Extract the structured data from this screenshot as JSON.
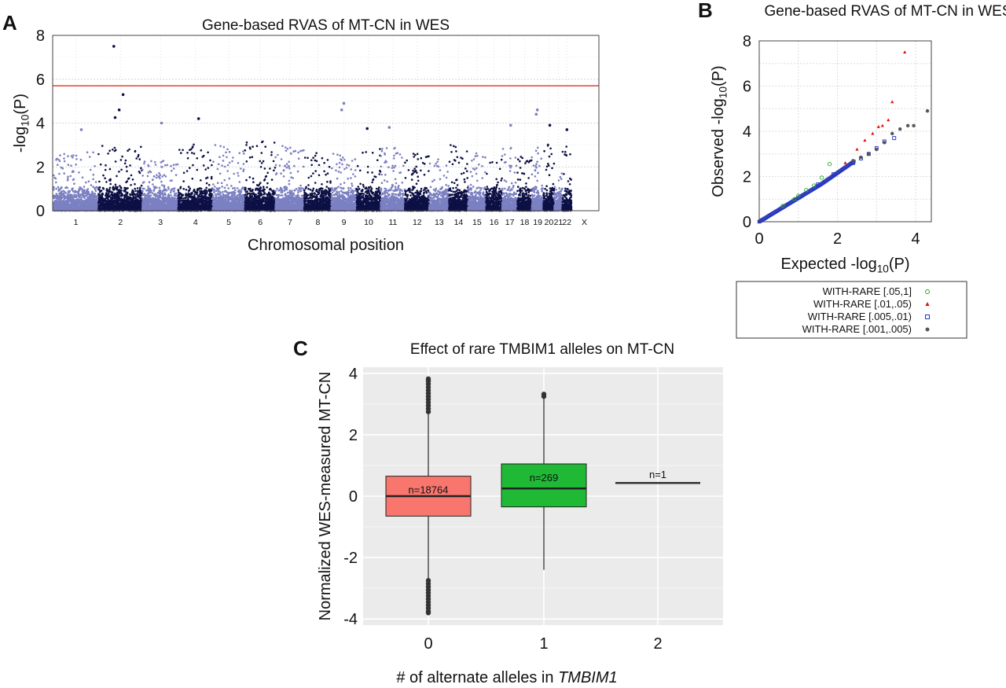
{
  "panels": {
    "a": {
      "letter": "A"
    },
    "b": {
      "letter": "B"
    },
    "c": {
      "letter": "C"
    }
  },
  "chart_data": [
    {
      "id": "A",
      "type": "scatter",
      "title": "Gene-based RVAS of MT-CN in WES",
      "xlabel": "Chromosomal position",
      "ylabel": "-log10(P)",
      "ylim": [
        0,
        8
      ],
      "yticks": [
        0,
        2,
        4,
        6,
        8
      ],
      "grid": true,
      "threshold": 5.7,
      "threshold_color": "#e34234",
      "colors": {
        "light": "#7b80c2",
        "dark": "#0d1045"
      },
      "chromosomes": [
        "1",
        "2",
        "3",
        "4",
        "5",
        "6",
        "7",
        "8",
        "9",
        "10",
        "11",
        "12",
        "13",
        "14",
        "15",
        "16",
        "17",
        "18",
        "19",
        "20",
        "21",
        "22",
        "X"
      ],
      "top_hits": [
        {
          "chromosome": "2",
          "p": 7.5
        },
        {
          "chromosome": "2",
          "p": 5.3
        },
        {
          "chromosome": "2",
          "p": 4.6
        },
        {
          "chromosome": "2",
          "p": 4.25
        },
        {
          "chromosome": "4",
          "p": 4.2
        },
        {
          "chromosome": "9",
          "p": 4.9
        },
        {
          "chromosome": "9",
          "p": 4.6
        },
        {
          "chromosome": "1",
          "p": 3.7
        },
        {
          "chromosome": "3",
          "p": 4.0
        },
        {
          "chromosome": "10",
          "p": 3.75
        },
        {
          "chromosome": "11",
          "p": 3.8
        },
        {
          "chromosome": "17",
          "p": 3.9
        },
        {
          "chromosome": "19",
          "p": 4.6
        },
        {
          "chromosome": "19",
          "p": 4.4
        },
        {
          "chromosome": "20",
          "p": 3.9
        },
        {
          "chromosome": "22",
          "p": 3.7
        }
      ]
    },
    {
      "id": "B",
      "type": "scatter",
      "title": "Gene-based RVAS of MT-CN in WES",
      "xlabel": "Expected -log10(P)",
      "ylabel": "Observed -log10(P)",
      "xlim": [
        0,
        4.4
      ],
      "ylim": [
        0,
        8
      ],
      "xticks": [
        0,
        2,
        4
      ],
      "yticks": [
        0,
        2,
        4,
        6,
        8
      ],
      "grid": true,
      "legend_position": "bottom",
      "series": [
        {
          "name": "WITH-RARE [.05,1]",
          "marker": "○",
          "color": "#22aa22",
          "x": [
            0.6,
            0.9,
            1.0,
            1.2,
            1.4,
            1.6,
            1.8
          ],
          "y": [
            0.7,
            1.0,
            1.15,
            1.4,
            1.6,
            1.95,
            2.55
          ]
        },
        {
          "name": "WITH-RARE [.01,.05)",
          "marker": "▲",
          "color": "#dd1111",
          "x": [
            2.2,
            2.5,
            2.7,
            2.9,
            3.05,
            3.15,
            3.3,
            3.4,
            3.72
          ],
          "y": [
            2.6,
            3.2,
            3.6,
            3.9,
            4.2,
            4.25,
            4.5,
            5.3,
            7.5
          ]
        },
        {
          "name": "WITH-RARE [.005,.01)",
          "marker": "□",
          "color": "#2233cc",
          "x": [
            1.5,
            1.9,
            2.4,
            2.6,
            2.8,
            3.0,
            3.2,
            3.45
          ],
          "y": [
            1.65,
            2.1,
            2.6,
            2.8,
            3.0,
            3.25,
            3.55,
            3.7
          ]
        },
        {
          "name": "WITH-RARE [.001,.005)",
          "marker": "●",
          "color": "#555555",
          "x": [
            2.4,
            2.6,
            2.8,
            3.0,
            3.2,
            3.4,
            3.6,
            3.8,
            3.95,
            4.3
          ],
          "y": [
            2.7,
            2.85,
            3.0,
            3.2,
            3.5,
            3.9,
            4.1,
            4.25,
            4.25,
            4.9
          ]
        }
      ]
    },
    {
      "id": "C",
      "type": "box",
      "title": "Effect of rare TMBIM1 alleles on MT-CN",
      "xlabel": "# of alternate alleles in TMBIM1",
      "ylabel": "Normalized WES-measured MT-CN",
      "ylim": [
        -4.2,
        4.2
      ],
      "yticks": [
        -4,
        -2,
        0,
        2,
        4
      ],
      "grid": true,
      "categories": [
        "0",
        "1",
        "2"
      ],
      "boxes": [
        {
          "category": "0",
          "label": "n=18764",
          "color": "#f8766d",
          "q1": -0.65,
          "median": 0.0,
          "q3": 0.65,
          "whisker_low": -2.7,
          "whisker_high": 2.7,
          "outliers_low": [
            -2.75,
            -2.85,
            -2.95,
            -3.05,
            -3.15,
            -3.25,
            -3.35,
            -3.45,
            -3.55,
            -3.65,
            -3.75,
            -3.8
          ],
          "outliers_high": [
            2.75,
            2.85,
            2.95,
            3.05,
            3.15,
            3.25,
            3.35,
            3.45,
            3.55,
            3.65,
            3.75,
            3.82
          ]
        },
        {
          "category": "1",
          "label": "n=269",
          "color": "#20b936",
          "q1": -0.35,
          "median": 0.25,
          "q3": 1.05,
          "whisker_low": -2.4,
          "whisker_high": 3.2,
          "outliers_low": [],
          "outliers_high": [
            3.25,
            3.32
          ]
        },
        {
          "category": "2",
          "label": "n=1",
          "color": "#333333",
          "q1": 0.43,
          "median": 0.43,
          "q3": 0.43,
          "whisker_low": 0.43,
          "whisker_high": 0.43,
          "outliers_low": [],
          "outliers_high": []
        }
      ]
    }
  ]
}
